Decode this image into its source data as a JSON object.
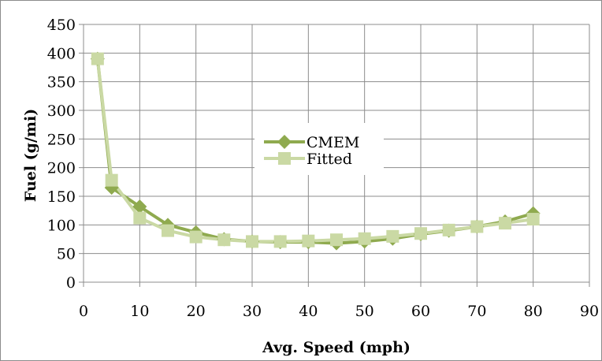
{
  "chart_data": {
    "type": "line",
    "title": "",
    "xlabel": "Avg. Speed (mph)",
    "ylabel": "Fuel (g/mi)",
    "xlim": [
      0,
      90
    ],
    "ylim": [
      0,
      450
    ],
    "x_ticks": [
      0,
      10,
      20,
      30,
      40,
      50,
      60,
      70,
      80,
      90
    ],
    "y_ticks": [
      0,
      50,
      100,
      150,
      200,
      250,
      300,
      350,
      400,
      450
    ],
    "grid": true,
    "legend_position": "center",
    "series": [
      {
        "name": "CMEM",
        "marker": "diamond",
        "color": "#8faa4f",
        "x": [
          2.5,
          5,
          10,
          15,
          20,
          25,
          30,
          35,
          40,
          45,
          50,
          55,
          60,
          65,
          70,
          75,
          80
        ],
        "y": [
          390,
          165,
          132,
          100,
          87,
          75,
          71,
          70,
          70,
          68,
          71,
          76,
          84,
          90,
          97,
          106,
          120
        ]
      },
      {
        "name": "Fitted",
        "marker": "square",
        "color": "#cad9a4",
        "x": [
          2.5,
          5,
          10,
          15,
          20,
          25,
          30,
          35,
          40,
          45,
          50,
          55,
          60,
          65,
          70,
          75,
          80
        ],
        "y": [
          390,
          178,
          112,
          90,
          79,
          74,
          71,
          71,
          72,
          74,
          76,
          80,
          85,
          91,
          97,
          103,
          110
        ]
      }
    ]
  }
}
